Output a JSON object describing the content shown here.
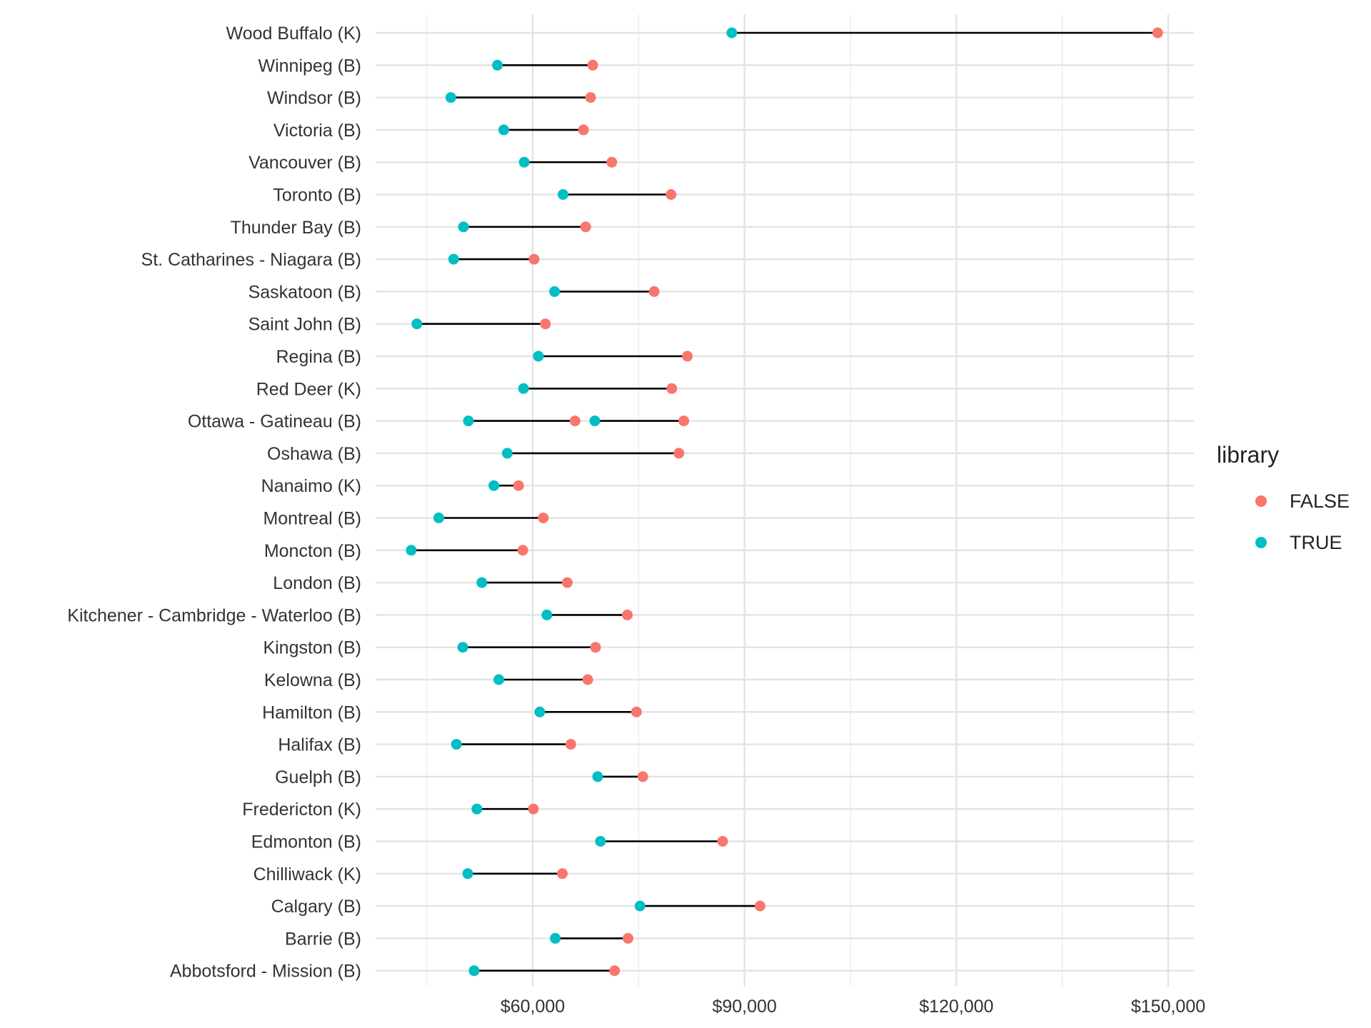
{
  "chart_data": {
    "type": "dumbbell",
    "title": "",
    "xlabel": "",
    "ylabel": "",
    "xlim": [
      37000,
      153500
    ],
    "x_ticks": [
      60000,
      90000,
      120000,
      150000
    ],
    "x_tick_labels": [
      "$60,000",
      "$90,000",
      "$120,000",
      "$150,000"
    ],
    "grid": true,
    "legend": {
      "title": "library",
      "placement": "right",
      "entries": [
        {
          "label": "FALSE",
          "color": "#F8766D"
        },
        {
          "label": "TRUE",
          "color": "#00BFC4"
        }
      ]
    },
    "categories": [
      "Wood Buffalo (K)",
      "Winnipeg (B)",
      "Windsor (B)",
      "Victoria (B)",
      "Vancouver (B)",
      "Toronto (B)",
      "Thunder Bay (B)",
      "St. Catharines - Niagara (B)",
      "Saskatoon (B)",
      "Saint John (B)",
      "Regina (B)",
      "Red Deer (K)",
      "Ottawa - Gatineau (B)",
      "Oshawa (B)",
      "Nanaimo (K)",
      "Montreal (B)",
      "Moncton (B)",
      "London (B)",
      "Kitchener - Cambridge - Waterloo (B)",
      "Kingston (B)",
      "Kelowna (B)",
      "Hamilton (B)",
      "Halifax (B)",
      "Guelph (B)",
      "Fredericton (K)",
      "Edmonton (B)",
      "Chilliwack (K)",
      "Calgary (B)",
      "Barrie (B)",
      "Abbotsford - Mission (B)"
    ],
    "series": [
      {
        "name": "FALSE",
        "color": "#F8766D",
        "values": [
          148500,
          68500,
          68200,
          67200,
          71200,
          79600,
          67500,
          60200,
          77200,
          61800,
          81900,
          79700,
          [
            66000,
            81400
          ],
          80700,
          58000,
          61500,
          58600,
          64900,
          73400,
          68900,
          67800,
          74700,
          65400,
          75600,
          60100,
          86900,
          64200,
          92200,
          73500,
          71600
        ]
      },
      {
        "name": "TRUE",
        "color": "#00BFC4",
        "values": [
          88200,
          55000,
          48400,
          55900,
          58800,
          64300,
          50200,
          48800,
          63100,
          43600,
          60800,
          58700,
          [
            50900,
            68800
          ],
          56400,
          54500,
          46700,
          42800,
          52800,
          62000,
          50100,
          55200,
          61000,
          49200,
          69200,
          52100,
          69600,
          50800,
          75200,
          63200,
          51700
        ]
      }
    ]
  }
}
